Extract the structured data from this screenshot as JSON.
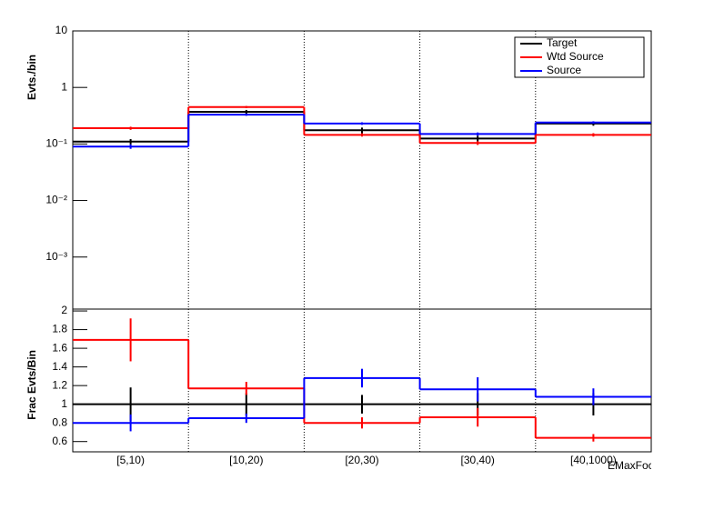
{
  "chart_data": [
    {
      "type": "step",
      "y_label": "Evts./bin",
      "log_y": true,
      "grid_x": true,
      "ylim": [
        0.00012,
        10
      ],
      "yticks": [
        {
          "value": 10,
          "label": "10"
        },
        {
          "value": 1,
          "label": "1"
        },
        {
          "value": 0.1,
          "label": "10⁻¹"
        },
        {
          "value": 0.01,
          "label": "10⁻²"
        },
        {
          "value": 0.001,
          "label": "10⁻³"
        }
      ],
      "legend": "top-right",
      "series": [
        {
          "name": "Target",
          "color": "#000000",
          "values": [
            0.11,
            0.37,
            0.175,
            0.125,
            0.23
          ],
          "errors": [
            0.012,
            0.03,
            0.02,
            0.015,
            0.02
          ]
        },
        {
          "name": "Wtd Source",
          "color": "#ff0000",
          "values": [
            0.19,
            0.45,
            0.145,
            0.104,
            0.145
          ],
          "errors": [
            0.012,
            0.02,
            0.01,
            0.008,
            0.01
          ]
        },
        {
          "name": "Source",
          "color": "#0000ff",
          "values": [
            0.09,
            0.33,
            0.23,
            0.15,
            0.24
          ],
          "errors": [
            0.008,
            0.015,
            0.012,
            0.01,
            0.012
          ]
        }
      ]
    },
    {
      "type": "step",
      "y_label": "Frac Evts/Bin",
      "x_label": "EMaxFocll",
      "grid_x": true,
      "categories": [
        "[5,10)",
        "[10,20)",
        "[20,30)",
        "[30,40)",
        "[40,1000)"
      ],
      "ylim": [
        0.49,
        2.02
      ],
      "yticks": [
        2,
        1.8,
        1.6,
        1.4,
        1.2,
        1,
        0.8,
        0.6
      ],
      "series": [
        {
          "color": "#000000",
          "values": [
            1,
            1,
            1,
            1,
            1
          ],
          "errors": [
            0.18,
            0.12,
            0.1,
            0.12,
            0.12
          ]
        },
        {
          "color": "#ff0000",
          "values": [
            1.69,
            1.17,
            0.8,
            0.86,
            0.64
          ],
          "errors": [
            0.23,
            0.07,
            0.06,
            0.1,
            0.04
          ]
        },
        {
          "color": "#0000ff",
          "values": [
            0.8,
            0.85,
            1.28,
            1.16,
            1.08
          ],
          "errors": [
            0.09,
            0.05,
            0.1,
            0.13,
            0.09
          ]
        }
      ]
    }
  ]
}
